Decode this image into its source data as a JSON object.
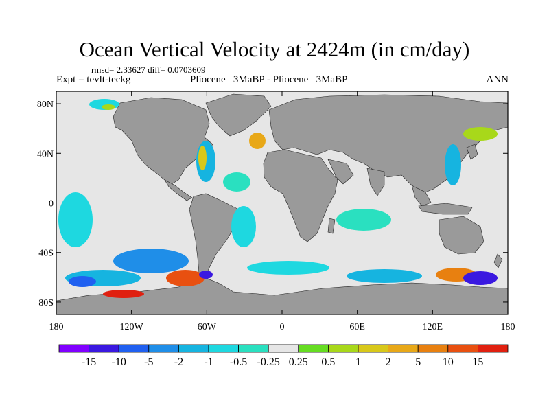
{
  "title": "Ocean Vertical Velocity at 2424m (in cm/day)",
  "stats": "rmsd= 2.33627 diff= 0.0703609",
  "expt": "Expt = tevlt-teckg",
  "subtitle": "Pliocene   3MaBP - Pliocene   3MaBP",
  "season": "ANN",
  "map": {
    "lon_range": [
      -180,
      180
    ],
    "lat_range": [
      -90,
      90
    ],
    "lat_ticks": [
      {
        "value": 80,
        "label": "80N"
      },
      {
        "value": 40,
        "label": "40N"
      },
      {
        "value": 0,
        "label": "0"
      },
      {
        "value": -40,
        "label": "40S"
      },
      {
        "value": -80,
        "label": "80S"
      }
    ],
    "lon_ticks": [
      {
        "value": -180,
        "label": "180"
      },
      {
        "value": -120,
        "label": "120W"
      },
      {
        "value": -60,
        "label": "60W"
      },
      {
        "value": 0,
        "label": "0"
      },
      {
        "value": 60,
        "label": "60E"
      },
      {
        "value": 120,
        "label": "120E"
      },
      {
        "value": 180,
        "label": "180"
      }
    ],
    "land_color": "#9a9a9a",
    "ocean_neutral_color": "#e6e6e6"
  },
  "colorbar": {
    "colors": [
      "#8000ff",
      "#3a18e0",
      "#2060f0",
      "#1f8ee8",
      "#16b4e0",
      "#1ed8e0",
      "#2ae0c0",
      "#e6e6e6",
      "#66dd22",
      "#a8d81a",
      "#d8c81a",
      "#e8a818",
      "#e88010",
      "#e85010",
      "#e02010"
    ],
    "labels": [
      "-15",
      "-10",
      "-5",
      "-2",
      "-1",
      "-0.5",
      "-0.25",
      "0.25",
      "0.5",
      "1",
      "2",
      "5",
      "10",
      "15"
    ]
  }
}
